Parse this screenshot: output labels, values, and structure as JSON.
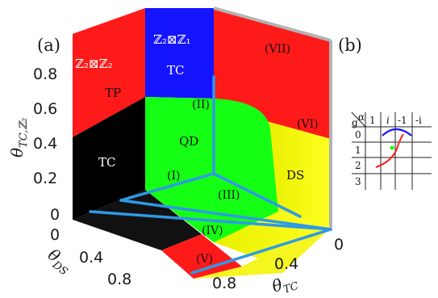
{
  "panels": {
    "a": "(a)",
    "b": "(b)"
  },
  "axes": {
    "left": {
      "ticks": [
        "0.8",
        "0.6",
        "0.4",
        "0.2",
        "0"
      ],
      "label_main": "θ",
      "label_sub": "TC,ℤ₂"
    },
    "depth": {
      "ticks": [
        "0",
        "0.4",
        "0.8"
      ],
      "label_main": "θ",
      "label_sub": "DS"
    },
    "right": {
      "ticks": [
        "0",
        "0.4",
        "0.8"
      ],
      "label_main": "θ",
      "label_sub": "TC"
    }
  },
  "regions": {
    "tp_sym": "ℤ₂⊠ℤ₂",
    "tp": "TP",
    "tc_top_sym": "ℤ₂⊠ℤ₁",
    "tc_top": "TC",
    "tc_left": "TC",
    "qd": "QD",
    "ds": "DS"
  },
  "roman": {
    "i": "(I)",
    "ii": "(II)",
    "iii": "(III)",
    "iv": "(IV)",
    "v": "(V)",
    "vi": "(VI)",
    "vii": "(VII)"
  },
  "table": {
    "corner_top": "α",
    "corner_bottom": "g",
    "columns": [
      "1",
      "i",
      "-1",
      "-i"
    ],
    "rows": [
      "0",
      "1",
      "2",
      "3"
    ]
  },
  "colors": {
    "red": "#ff1a1a",
    "blue": "#1414ff",
    "green": "#14ff14",
    "black": "#000000",
    "yellow": "#ffff14",
    "line": "#2e9ae6",
    "frame": "#b3b3b3"
  }
}
